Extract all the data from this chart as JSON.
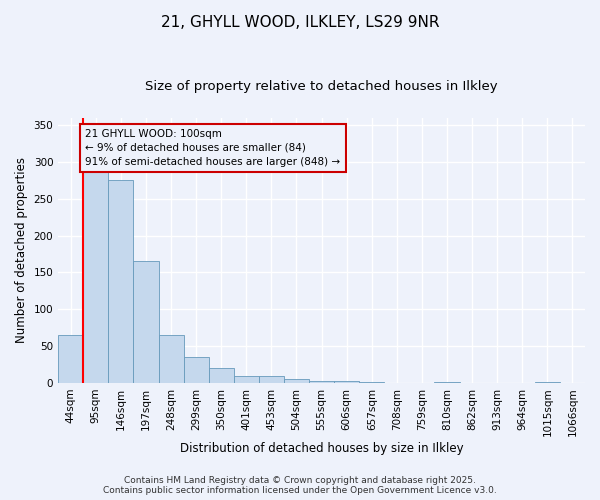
{
  "title_line1": "21, GHYLL WOOD, ILKLEY, LS29 9NR",
  "title_line2": "Size of property relative to detached houses in Ilkley",
  "xlabel": "Distribution of detached houses by size in Ilkley",
  "ylabel": "Number of detached properties",
  "categories": [
    "44sqm",
    "95sqm",
    "146sqm",
    "197sqm",
    "248sqm",
    "299sqm",
    "350sqm",
    "401sqm",
    "453sqm",
    "504sqm",
    "555sqm",
    "606sqm",
    "657sqm",
    "708sqm",
    "759sqm",
    "810sqm",
    "862sqm",
    "913sqm",
    "964sqm",
    "1015sqm",
    "1066sqm"
  ],
  "values": [
    65,
    290,
    275,
    165,
    65,
    35,
    20,
    10,
    10,
    6,
    3,
    2,
    1,
    0,
    0,
    1,
    0,
    0,
    0,
    1,
    0
  ],
  "bar_color": "#c5d8ed",
  "bar_edge_color": "#6699bb",
  "annotation_text": "21 GHYLL WOOD: 100sqm\n← 9% of detached houses are smaller (84)\n91% of semi-detached houses are larger (848) →",
  "annotation_box_color": "#cc0000",
  "red_line_x": 0.5,
  "ylim": [
    0,
    360
  ],
  "yticks": [
    0,
    50,
    100,
    150,
    200,
    250,
    300,
    350
  ],
  "footer_line1": "Contains HM Land Registry data © Crown copyright and database right 2025.",
  "footer_line2": "Contains public sector information licensed under the Open Government Licence v3.0.",
  "background_color": "#eef2fb",
  "grid_color": "#ffffff",
  "title_fontsize": 11,
  "subtitle_fontsize": 9.5,
  "axis_label_fontsize": 8.5,
  "tick_fontsize": 7.5,
  "annotation_fontsize": 7.5,
  "footer_fontsize": 6.5
}
